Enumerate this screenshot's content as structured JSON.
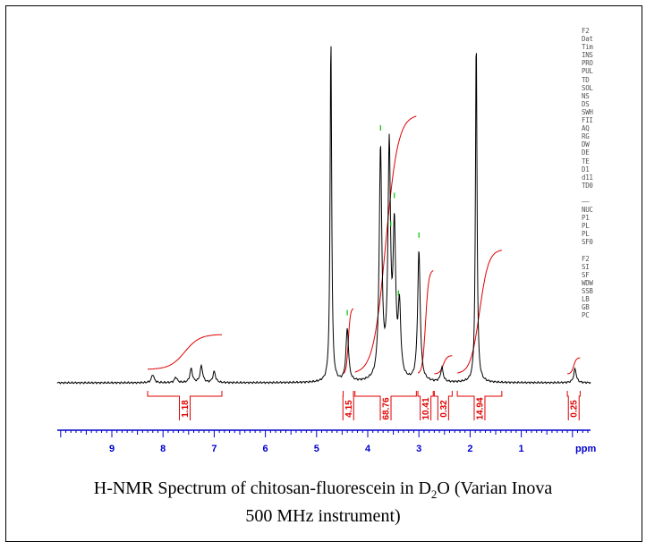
{
  "caption": {
    "line1_pre": "H-NMR Spectrum of chitosan-fluorescein in D",
    "line1_sub": "2",
    "line1_post": "O (Varian Inova",
    "line2": "500 MHz instrument)"
  },
  "params_panel": {
    "group1": [
      "F2",
      "Dat",
      "Tim",
      "INS",
      "PRO",
      "PUL",
      "TD",
      "SOL",
      "NS",
      "DS",
      "SWH",
      "FII",
      "AQ",
      "RG",
      "DW",
      "DE",
      "TE",
      "D1",
      "d11",
      "TD0"
    ],
    "separator": "——",
    "group2": [
      "NUC",
      "P1",
      "PL",
      "PL",
      "SF0"
    ],
    "group3": [
      "F2",
      "SI",
      "SF",
      "WDW",
      "SSB",
      "LB",
      "GB",
      "PC"
    ]
  },
  "colors": {
    "spectrum": "#000000",
    "integral": "#e00000",
    "peak_marker": "#00c000",
    "axis": "#0000cc"
  },
  "chart_data": {
    "type": "line",
    "xlabel": "ppm",
    "xlim": [
      10.0,
      -0.5
    ],
    "x_reversed": true,
    "ticks": [
      9,
      8,
      7,
      6,
      5,
      4,
      3,
      2,
      1
    ],
    "tick_labels": [
      "9",
      "8",
      "7",
      "6",
      "5",
      "4",
      "3",
      "2",
      "1"
    ],
    "grid": false,
    "peaks": [
      {
        "ppm": 8.2,
        "height": 0.03
      },
      {
        "ppm": 7.75,
        "height": 0.02
      },
      {
        "ppm": 7.45,
        "height": 0.05
      },
      {
        "ppm": 7.25,
        "height": 0.06
      },
      {
        "ppm": 7.0,
        "height": 0.04
      },
      {
        "ppm": 4.72,
        "height": 1.25
      },
      {
        "ppm": 4.4,
        "height": 0.19
      },
      {
        "ppm": 3.75,
        "height": 0.83
      },
      {
        "ppm": 3.58,
        "height": 0.82
      },
      {
        "ppm": 3.48,
        "height": 0.52
      },
      {
        "ppm": 3.38,
        "height": 0.25
      },
      {
        "ppm": 3.0,
        "height": 0.47
      },
      {
        "ppm": 2.55,
        "height": 0.05
      },
      {
        "ppm": 1.88,
        "height": 1.25
      },
      {
        "ppm": -0.05,
        "height": 0.05
      }
    ],
    "peak_markers_ppm": [
      4.4,
      3.75,
      3.55,
      3.48,
      3.4,
      3.0
    ],
    "integrals": [
      {
        "from": 8.3,
        "to": 6.85,
        "value": "1.18"
      },
      {
        "from": 4.48,
        "to": 4.28,
        "value": "4.15"
      },
      {
        "from": 4.25,
        "to": 3.05,
        "value": "68.76"
      },
      {
        "from": 3.02,
        "to": 2.72,
        "value": "10.41"
      },
      {
        "from": 2.7,
        "to": 2.35,
        "value": "0.32"
      },
      {
        "from": 2.25,
        "to": 1.38,
        "value": "14.94"
      },
      {
        "from": 0.1,
        "to": -0.15,
        "value": "0.25"
      }
    ]
  }
}
